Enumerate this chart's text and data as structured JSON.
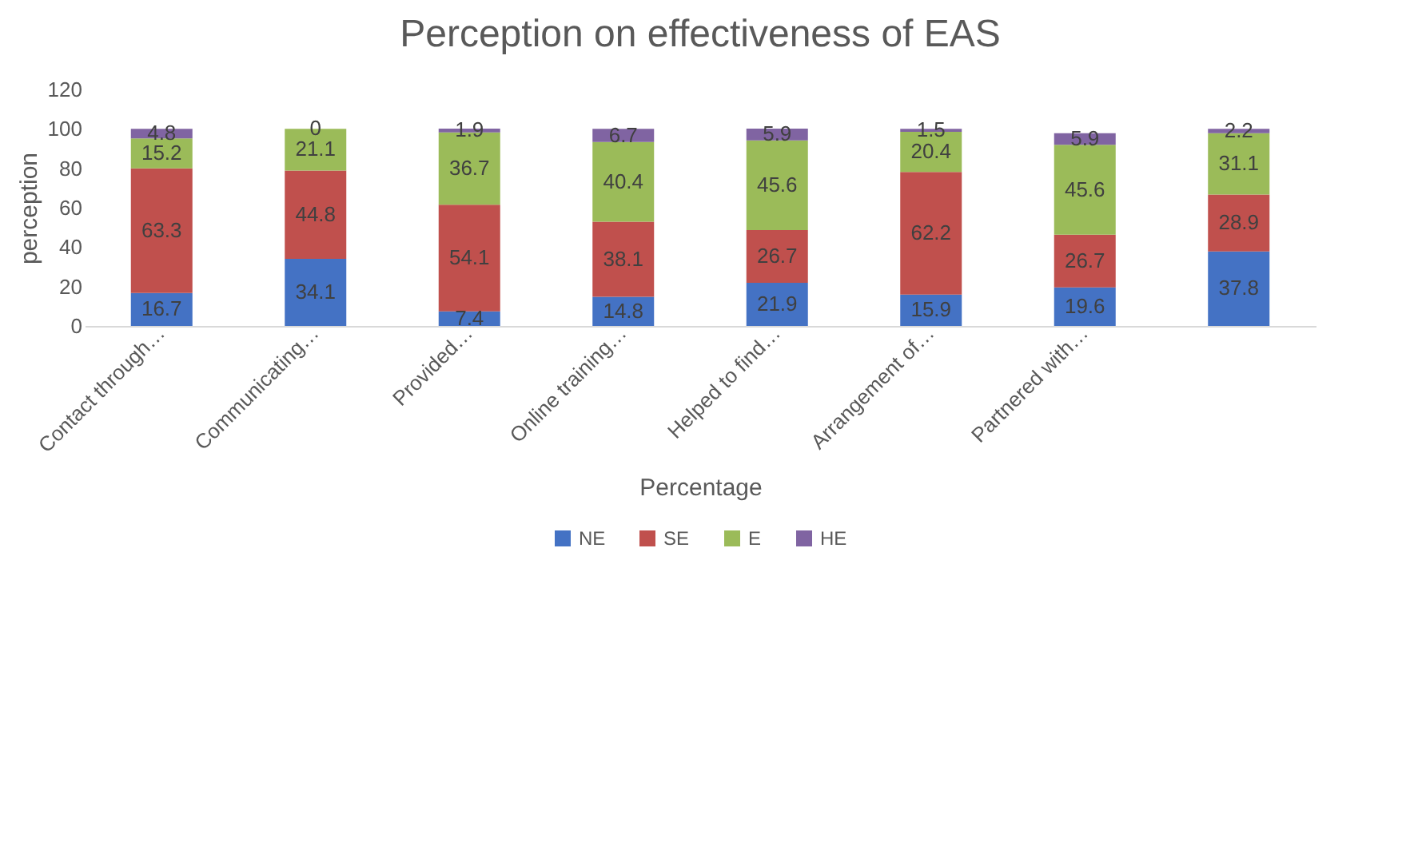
{
  "chart_data": {
    "type": "bar",
    "title": "Perception on effectiveness of EAS",
    "xlabel": "Percentage",
    "ylabel": "perception",
    "categories": [
      "Contact through…",
      "Communicating…",
      "Provided…",
      "Online training…",
      "Helped to find…",
      "Arrangement of…",
      "Partnered with…",
      null
    ],
    "stacked": true,
    "data_labels": true,
    "legend": "bottom",
    "grid": false,
    "ylim": [
      0,
      120
    ],
    "yticks": [
      0,
      20,
      40,
      60,
      80,
      100,
      120
    ],
    "series": [
      {
        "name": "NE",
        "color": "#4472c4",
        "values": [
          16.7,
          34.1,
          7.4,
          14.8,
          21.9,
          15.9,
          19.6,
          37.8
        ]
      },
      {
        "name": "SE",
        "color": "#c0504d",
        "values": [
          63.3,
          44.8,
          54.1,
          38.1,
          26.7,
          62.2,
          26.7,
          28.9
        ]
      },
      {
        "name": "E",
        "color": "#9bbb59",
        "values": [
          15.2,
          21.1,
          36.7,
          40.4,
          45.6,
          20.4,
          45.6,
          31.1
        ]
      },
      {
        "name": "HE",
        "color": "#8064a2",
        "values": [
          4.8,
          0,
          1.9,
          6.7,
          5.9,
          1.5,
          5.9,
          2.2
        ]
      }
    ]
  }
}
